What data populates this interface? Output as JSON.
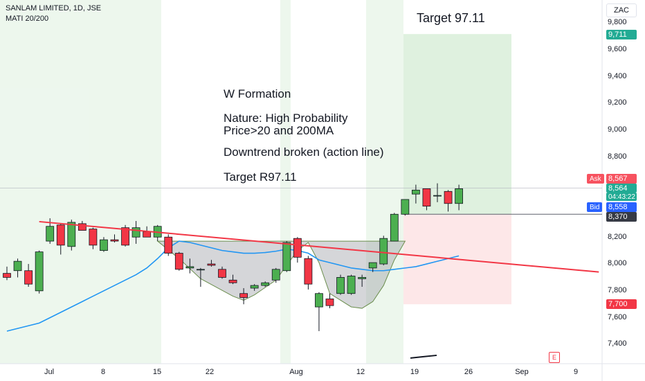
{
  "header": {
    "title": "SANLAM LIMITED, 1D, JSE",
    "indicator": "MATI 20/200"
  },
  "annotations": {
    "formation": "W Formation",
    "nature": "Nature: High Probability",
    "price": "Price>20 and 200MA",
    "downtrend": "Downtrend broken (action line)",
    "target_text": "Target R97.11",
    "target_label": "Target 97.11"
  },
  "price_axis": {
    "currency": "ZAC",
    "ticks": [
      "9,800",
      "9,600",
      "9,400",
      "9,200",
      "9,000",
      "8,800",
      "8,200",
      "8,000",
      "7,800",
      "7,600",
      "7,400"
    ],
    "target_badge": "9,711",
    "stop_badge": "7,700",
    "ask_label": "Ask",
    "ask_value": "8,567",
    "last_value": "8,564",
    "countdown": "04:43:22",
    "bid_label": "Bid",
    "bid_value": "8,558",
    "entry_badge": "8,370"
  },
  "time_axis": {
    "ticks": [
      "Jul",
      "8",
      "15",
      "22",
      "Aug",
      "12",
      "19",
      "26",
      "Sep",
      "9"
    ]
  },
  "footer": {
    "e_marker": "E"
  },
  "colors": {
    "up": "#4caf50",
    "down": "#f23645",
    "ma20": "#2196f3",
    "trendline": "#f23645",
    "target_zone": "#4caf50",
    "stop_zone": "#f23645",
    "session_band": "#4caf50"
  },
  "chart_data": {
    "type": "candlestick",
    "symbol": "SANLAM LIMITED",
    "interval": "1D",
    "exchange": "JSE",
    "currency": "ZAC",
    "y_range": [
      7300,
      9950
    ],
    "candles": [
      {
        "o": 7930,
        "h": 7980,
        "l": 7880,
        "c": 7900
      },
      {
        "o": 7950,
        "h": 8040,
        "l": 7900,
        "c": 8020
      },
      {
        "o": 7950,
        "h": 8000,
        "l": 7830,
        "c": 7850
      },
      {
        "o": 7800,
        "h": 8100,
        "l": 7780,
        "c": 8090
      },
      {
        "o": 8170,
        "h": 8340,
        "l": 8150,
        "c": 8280
      },
      {
        "o": 8290,
        "h": 8300,
        "l": 8070,
        "c": 8140
      },
      {
        "o": 8130,
        "h": 8330,
        "l": 8100,
        "c": 8310
      },
      {
        "o": 8300,
        "h": 8320,
        "l": 8250,
        "c": 8250
      },
      {
        "o": 8260,
        "h": 8270,
        "l": 8110,
        "c": 8140
      },
      {
        "o": 8100,
        "h": 8200,
        "l": 8090,
        "c": 8180
      },
      {
        "o": 8180,
        "h": 8220,
        "l": 8160,
        "c": 8170
      },
      {
        "o": 8270,
        "h": 8290,
        "l": 8130,
        "c": 8140
      },
      {
        "o": 8200,
        "h": 8320,
        "l": 8150,
        "c": 8270
      },
      {
        "o": 8240,
        "h": 8280,
        "l": 8200,
        "c": 8200
      },
      {
        "o": 8200,
        "h": 8290,
        "l": 8170,
        "c": 8280
      },
      {
        "o": 8200,
        "h": 8220,
        "l": 8060,
        "c": 8080
      },
      {
        "o": 8080,
        "h": 8090,
        "l": 7950,
        "c": 7960
      },
      {
        "o": 7970,
        "h": 8040,
        "l": 7930,
        "c": 7980
      },
      {
        "o": 7960,
        "h": 7970,
        "l": 7830,
        "c": 7960
      },
      {
        "o": 8000,
        "h": 8030,
        "l": 7980,
        "c": 7990
      },
      {
        "o": 7960,
        "h": 7980,
        "l": 7890,
        "c": 7900
      },
      {
        "o": 7880,
        "h": 7920,
        "l": 7850,
        "c": 7860
      },
      {
        "o": 7780,
        "h": 7820,
        "l": 7700,
        "c": 7750
      },
      {
        "o": 7820,
        "h": 7850,
        "l": 7800,
        "c": 7840
      },
      {
        "o": 7840,
        "h": 7870,
        "l": 7830,
        "c": 7860
      },
      {
        "o": 7880,
        "h": 7970,
        "l": 7860,
        "c": 7960
      },
      {
        "o": 7950,
        "h": 8170,
        "l": 7940,
        "c": 8160
      },
      {
        "o": 8190,
        "h": 8200,
        "l": 8010,
        "c": 8050
      },
      {
        "o": 8040,
        "h": 8060,
        "l": 7810,
        "c": 7850
      },
      {
        "o": 7680,
        "h": 7790,
        "l": 7500,
        "c": 7780
      },
      {
        "o": 7740,
        "h": 7780,
        "l": 7670,
        "c": 7690
      },
      {
        "o": 7780,
        "h": 7920,
        "l": 7770,
        "c": 7900
      },
      {
        "o": 7780,
        "h": 7920,
        "l": 7770,
        "c": 7910
      },
      {
        "o": 7890,
        "h": 7920,
        "l": 7830,
        "c": 7900
      },
      {
        "o": 7970,
        "h": 8000,
        "l": 7940,
        "c": 8010
      },
      {
        "o": 8000,
        "h": 8210,
        "l": 7990,
        "c": 8190
      },
      {
        "o": 8170,
        "h": 8380,
        "l": 8170,
        "c": 8370
      },
      {
        "o": 8370,
        "h": 8480,
        "l": 8360,
        "c": 8480
      },
      {
        "o": 8520,
        "h": 8590,
        "l": 8450,
        "c": 8550
      },
      {
        "o": 8560,
        "h": 8560,
        "l": 8400,
        "c": 8430
      },
      {
        "o": 8510,
        "h": 8600,
        "l": 8460,
        "c": 8510
      },
      {
        "o": 8540,
        "h": 8550,
        "l": 8390,
        "c": 8450
      },
      {
        "o": 8450,
        "h": 8590,
        "l": 8400,
        "c": 8560
      }
    ],
    "ma20": [
      7500,
      7520,
      7540,
      7560,
      7600,
      7640,
      7680,
      7720,
      7760,
      7800,
      7840,
      7880,
      7920,
      7970,
      8040,
      8120,
      8170,
      8160,
      8140,
      8120,
      8100,
      8090,
      8080,
      8080,
      8085,
      8095,
      8110,
      8100,
      8080,
      8030,
      8010,
      7990,
      7970,
      7960,
      7950,
      7950,
      7960,
      7970,
      7980,
      8000,
      8020,
      8040,
      8060
    ],
    "ma200": [
      7300,
      7310,
      7320
    ],
    "trendline": {
      "from": [
        3,
        8315
      ],
      "to": [
        55,
        7940
      ]
    },
    "w_formation": [
      [
        14,
        8170
      ],
      [
        16,
        8040
      ],
      [
        18,
        7890
      ],
      [
        21,
        7760
      ],
      [
        22,
        7730
      ],
      [
        23,
        7770
      ],
      [
        25,
        7880
      ],
      [
        27,
        8100
      ],
      [
        28,
        8160
      ],
      [
        29,
        8010
      ],
      [
        30,
        7780
      ],
      [
        32,
        7680
      ],
      [
        33,
        7670
      ],
      [
        34,
        7720
      ],
      [
        35,
        7840
      ],
      [
        36,
        8030
      ],
      [
        37,
        8170
      ]
    ],
    "position": {
      "entry": 8370,
      "target": 9711,
      "stop": 7700
    },
    "levels": {
      "ask": 8567,
      "last": 8564,
      "bid": 8558
    }
  }
}
